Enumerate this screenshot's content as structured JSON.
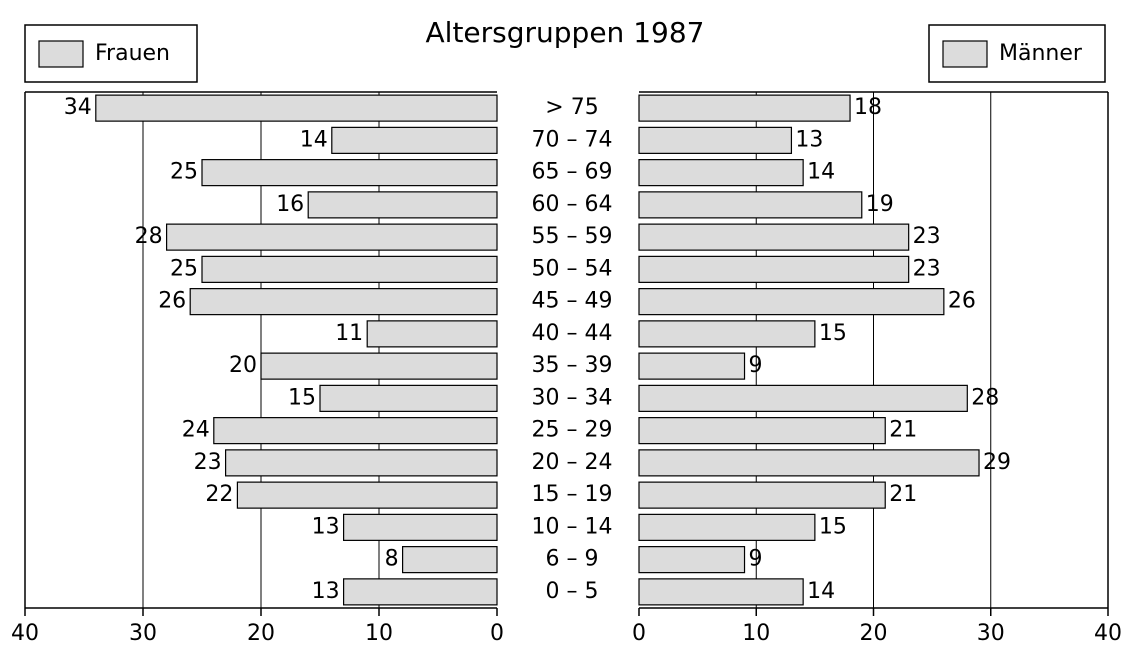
{
  "chart_data": {
    "type": "pyramid",
    "title": "Altersgruppen 1987",
    "categories": [
      "> 75",
      "70 – 74",
      "65 – 69",
      "60 – 64",
      "55 – 59",
      "50 – 54",
      "45 – 49",
      "40 – 44",
      "35 – 39",
      "30 – 34",
      "25 – 29",
      "20 – 24",
      "15 – 19",
      "10 – 14",
      "6 – 9",
      "0 – 5"
    ],
    "series": [
      {
        "name": "Frauen",
        "color": "#dcdcdc",
        "values": [
          34,
          14,
          25,
          16,
          28,
          25,
          26,
          11,
          20,
          15,
          24,
          23,
          22,
          13,
          8,
          13
        ]
      },
      {
        "name": "Männer",
        "color": "#dcdcdc",
        "values": [
          18,
          13,
          14,
          19,
          23,
          23,
          26,
          15,
          9,
          28,
          21,
          29,
          21,
          15,
          9,
          14
        ]
      }
    ],
    "xlim": [
      0,
      40
    ],
    "xticks": [
      0,
      10,
      20,
      30,
      40
    ],
    "grid": true
  }
}
